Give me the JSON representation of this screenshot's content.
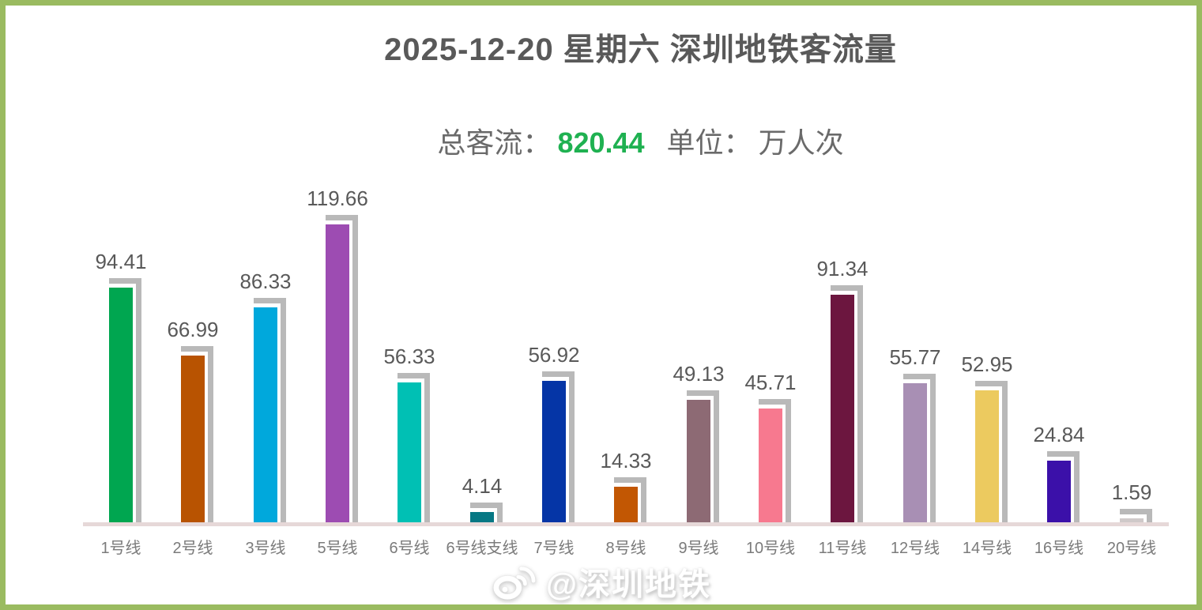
{
  "title": "2025-12-20 星期六 深圳地铁客流量",
  "subtitle": {
    "prefix": "总客流：",
    "total": "820.44",
    "unit_label": "单位：",
    "unit": "万人次"
  },
  "watermark": {
    "text": "@深圳地铁",
    "icon": "weibo-icon"
  },
  "colors": {
    "frame_border": "#9ABB60",
    "title_text": "#595959",
    "subtitle_text": "#6A6A6A",
    "total_green": "#1FB151",
    "value_label": "#595959",
    "axis_label": "#7B7B7B",
    "bar_shadow": "#B9B9B9",
    "axis_line": "#E6D8D8",
    "watermark_text": "#FFFFFF"
  },
  "chart_data": {
    "type": "bar",
    "title": "2025-12-20 星期六 深圳地铁客流量",
    "total": 820.44,
    "unit": "万人次",
    "categories": [
      "1号线",
      "2号线",
      "3号线",
      "5号线",
      "6号线",
      "6号线支线",
      "7号线",
      "8号线",
      "9号线",
      "10号线",
      "11号线",
      "12号线",
      "14号线",
      "16号线",
      "20号线"
    ],
    "values": [
      94.41,
      66.99,
      86.33,
      119.66,
      56.33,
      4.14,
      56.92,
      14.33,
      49.13,
      45.71,
      91.34,
      55.77,
      52.95,
      24.84,
      1.59
    ],
    "bar_colors": [
      "#00A650",
      "#B85301",
      "#00A8DC",
      "#9D4CB2",
      "#00C0B4",
      "#067884",
      "#0535A6",
      "#C25703",
      "#8D6A74",
      "#F7798F",
      "#6C163F",
      "#A88FB4",
      "#ECCA5F",
      "#3B10A9",
      "#CFC9C9"
    ],
    "value_labels": true,
    "grid": false,
    "legend": false,
    "ylim": [
      0,
      126
    ]
  }
}
